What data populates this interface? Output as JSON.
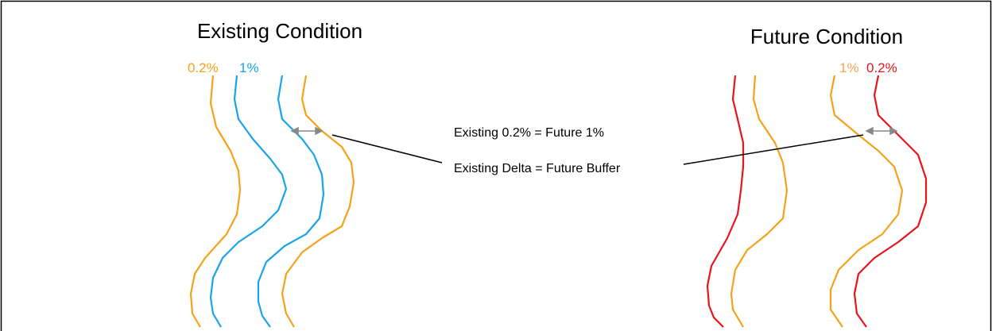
{
  "left_panel": {
    "title": "Existing Condition",
    "labels": [
      "0.2%",
      "1%"
    ]
  },
  "right_panel": {
    "title": "Future Condition",
    "labels": [
      "1%",
      "0.2%"
    ]
  },
  "annotations": [
    "Existing 0.2% = Future 1%",
    "Existing Delta = Future Buffer"
  ]
}
